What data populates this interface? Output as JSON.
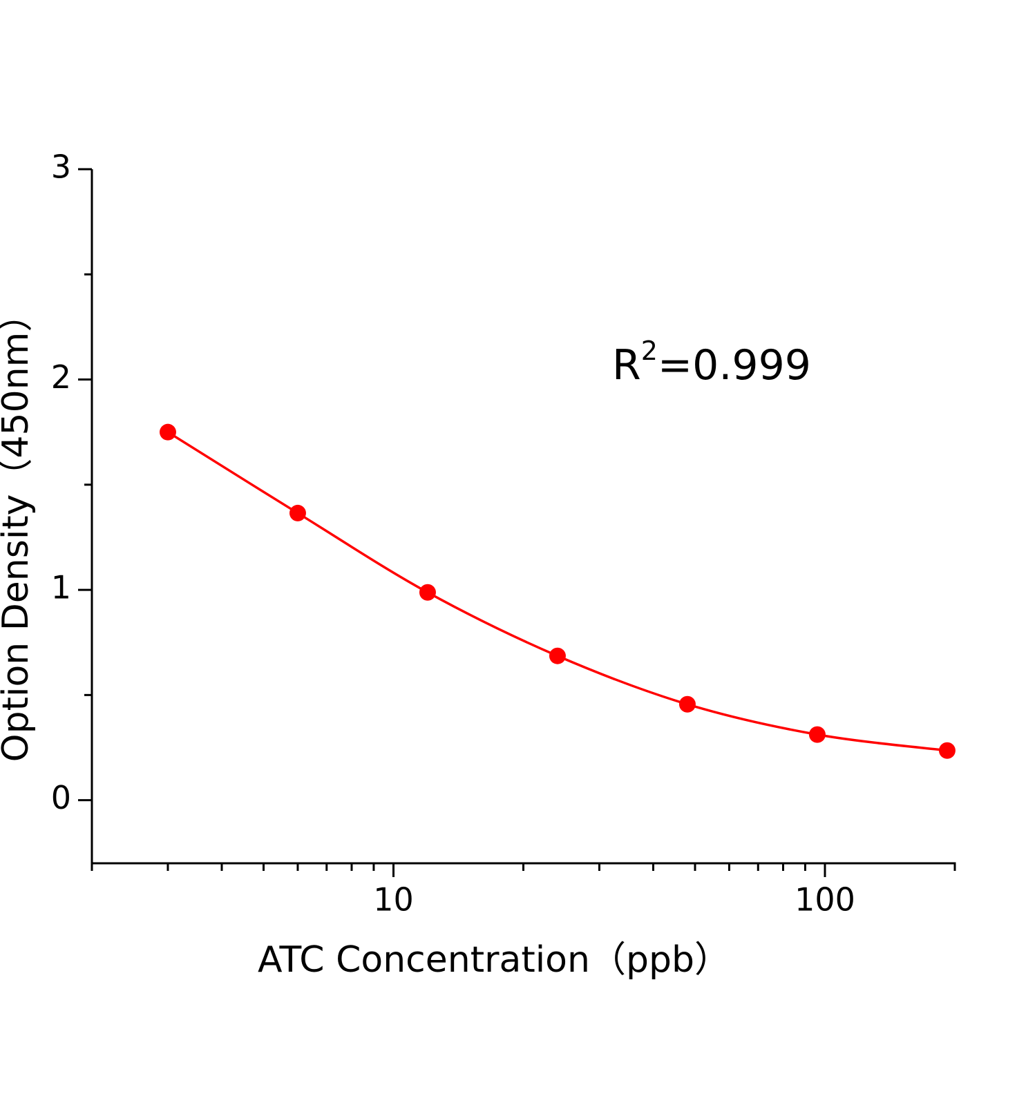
{
  "chart_data": {
    "type": "line",
    "x_label": "ATC Concentration（ppb）",
    "y_label": "Option Density（450nm）",
    "annotation": {
      "base": "R",
      "sup": "2",
      "rest": "=0.999"
    },
    "x": [
      3,
      6,
      12,
      24,
      48,
      96,
      192
    ],
    "series": [
      {
        "color": "#ff0000",
        "values": [
          1.75,
          1.365,
          0.988,
          0.686,
          0.456,
          0.312,
          0.236
        ]
      }
    ],
    "xscale": "log",
    "xlim": [
      2,
      200
    ],
    "xticks": [
      10,
      100
    ],
    "xminorticks": [
      2,
      3,
      4,
      5,
      6,
      7,
      8,
      9,
      20,
      30,
      40,
      50,
      60,
      70,
      80,
      90,
      200
    ],
    "ylim": [
      -0.3,
      3
    ],
    "yticks": [
      0,
      1,
      2,
      3
    ],
    "yminorticks": [
      0.5,
      1.5,
      2.5
    ]
  }
}
